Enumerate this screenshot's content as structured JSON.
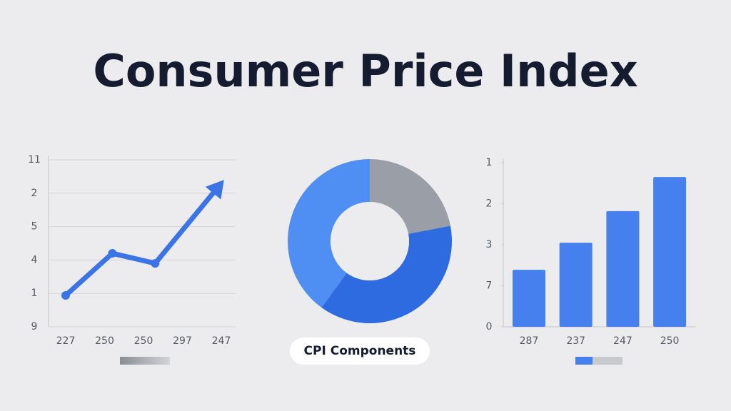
{
  "title": "Consumer Price Index",
  "charts": [
    {
      "type": "line",
      "color": "#3b74e6",
      "categories": [
        "227",
        "250",
        "250",
        "297",
        "247"
      ],
      "xlim": [
        0,
        4
      ],
      "x": [
        0,
        1.2,
        2.3,
        4
      ],
      "values": [
        0.94,
        2.2,
        1.9,
        4.3
      ],
      "ylim": [
        0,
        5
      ],
      "yticks": [
        {
          "value": 0,
          "label": "9"
        },
        {
          "value": 1,
          "label": "1"
        },
        {
          "value": 2,
          "label": "4"
        },
        {
          "value": 3,
          "label": "5"
        },
        {
          "value": 4,
          "label": "2"
        },
        {
          "value": 5,
          "label": "11"
        }
      ],
      "grid": true
    },
    {
      "type": "pie",
      "label": "CPI Components",
      "values": [
        22,
        38,
        40
      ],
      "colors": [
        "#9a9ea6",
        "#2f6be0",
        "#4f8ef2"
      ]
    },
    {
      "type": "bar",
      "color": "#4680ee",
      "categories": [
        "287",
        "237",
        "247",
        "250"
      ],
      "values": [
        1.39,
        2.05,
        2.82,
        3.65
      ],
      "ylim": [
        0,
        4
      ],
      "yticks": [
        {
          "value": 0,
          "label": "0"
        },
        {
          "value": 1,
          "label": "7"
        },
        {
          "value": 2,
          "label": "3"
        },
        {
          "value": 3,
          "label": "2"
        },
        {
          "value": 4,
          "label": "1"
        }
      ],
      "grid": false
    }
  ]
}
